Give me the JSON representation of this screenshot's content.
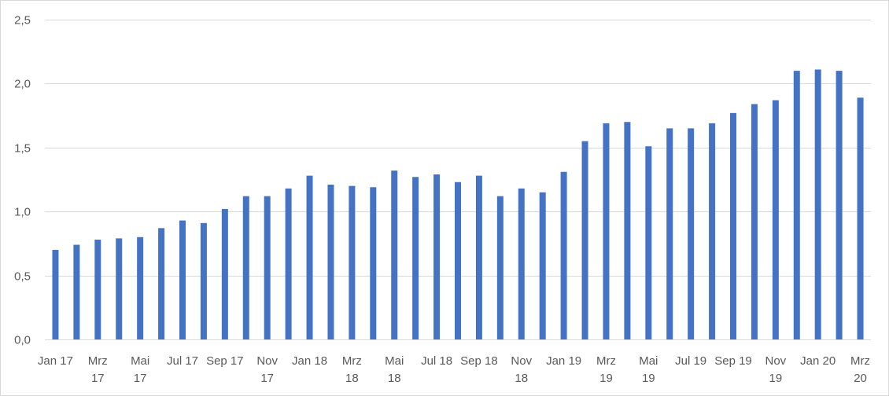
{
  "colors": {
    "bar": "#4472c4",
    "grid": "#d9d9d9",
    "text": "#595959",
    "border": "#d9d9d9"
  },
  "chart_data": {
    "type": "bar",
    "title": "",
    "xlabel": "",
    "ylabel": "",
    "ylim": [
      0,
      2.5
    ],
    "yticks": [
      "0,0",
      "0,5",
      "1,0",
      "1,5",
      "2,0",
      "2,5"
    ],
    "grid": true,
    "legend": "none",
    "categories": [
      "Jan 17",
      "Feb 17",
      "Mrz 17",
      "Apr 17",
      "Mai 17",
      "Jun 17",
      "Jul 17",
      "Aug 17",
      "Sep 17",
      "Okt 17",
      "Nov 17",
      "Dez 17",
      "Jan 18",
      "Feb 18",
      "Mrz 18",
      "Apr 18",
      "Mai 18",
      "Jun 18",
      "Jul 18",
      "Aug 18",
      "Sep 18",
      "Okt 18",
      "Nov 18",
      "Dez 18",
      "Jan 19",
      "Feb 19",
      "Mrz 19",
      "Apr 19",
      "Mai 19",
      "Jun 19",
      "Jul 19",
      "Aug 19",
      "Sep 19",
      "Okt 19",
      "Nov 19",
      "Dez 19",
      "Jan 20",
      "Feb 20",
      "Mrz 20"
    ],
    "shown_labels": [
      {
        "index": 0,
        "lines": [
          "Jan 17"
        ]
      },
      {
        "index": 2,
        "lines": [
          "Mrz",
          "17"
        ]
      },
      {
        "index": 4,
        "lines": [
          "Mai",
          "17"
        ]
      },
      {
        "index": 6,
        "lines": [
          "Jul 17"
        ]
      },
      {
        "index": 8,
        "lines": [
          "Sep 17"
        ]
      },
      {
        "index": 10,
        "lines": [
          "Nov",
          "17"
        ]
      },
      {
        "index": 12,
        "lines": [
          "Jan 18"
        ]
      },
      {
        "index": 14,
        "lines": [
          "Mrz",
          "18"
        ]
      },
      {
        "index": 16,
        "lines": [
          "Mai",
          "18"
        ]
      },
      {
        "index": 18,
        "lines": [
          "Jul 18"
        ]
      },
      {
        "index": 20,
        "lines": [
          "Sep 18"
        ]
      },
      {
        "index": 22,
        "lines": [
          "Nov",
          "18"
        ]
      },
      {
        "index": 24,
        "lines": [
          "Jan 19"
        ]
      },
      {
        "index": 26,
        "lines": [
          "Mrz",
          "19"
        ]
      },
      {
        "index": 28,
        "lines": [
          "Mai",
          "19"
        ]
      },
      {
        "index": 30,
        "lines": [
          "Jul 19"
        ]
      },
      {
        "index": 32,
        "lines": [
          "Sep 19"
        ]
      },
      {
        "index": 34,
        "lines": [
          "Nov",
          "19"
        ]
      },
      {
        "index": 36,
        "lines": [
          "Jan 20"
        ]
      },
      {
        "index": 38,
        "lines": [
          "Mrz",
          "20"
        ]
      }
    ],
    "values": [
      0.7,
      0.74,
      0.78,
      0.79,
      0.8,
      0.87,
      0.93,
      0.91,
      1.02,
      1.12,
      1.12,
      1.18,
      1.28,
      1.21,
      1.2,
      1.19,
      1.32,
      1.27,
      1.29,
      1.23,
      1.28,
      1.12,
      1.18,
      1.15,
      1.31,
      1.55,
      1.69,
      1.7,
      1.51,
      1.65,
      1.65,
      1.69,
      1.77,
      1.84,
      1.87,
      2.1,
      2.11,
      2.1,
      1.89
    ]
  }
}
